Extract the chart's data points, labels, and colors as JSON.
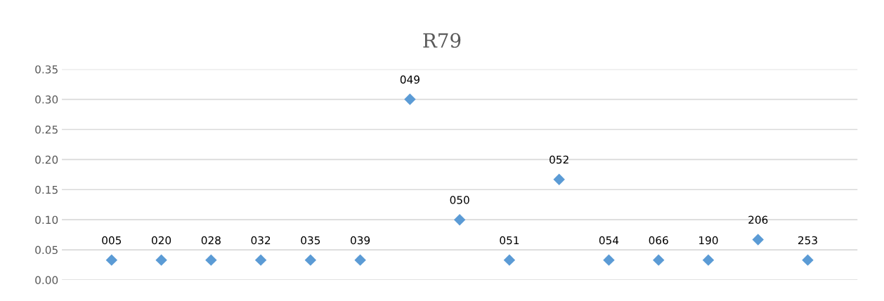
{
  "chart_data": {
    "type": "scatter",
    "title": "R79",
    "categories": [
      "005",
      "020",
      "028",
      "032",
      "035",
      "039",
      "049",
      "050",
      "051",
      "052",
      "054",
      "066",
      "190",
      "206",
      "253"
    ],
    "series": [
      {
        "color": "#5b9bd5",
        "values": [
          0.033,
          0.033,
          0.033,
          0.033,
          0.033,
          0.033,
          0.3,
          0.1,
          0.033,
          0.167,
          0.033,
          0.033,
          0.033,
          0.067,
          0.033
        ]
      }
    ],
    "ylim": [
      0,
      0.35
    ],
    "yticks": [
      {
        "value": 0,
        "label": "0.00"
      },
      {
        "value": 0.05,
        "label": "0.05"
      },
      {
        "value": 0.1,
        "label": "0.10"
      },
      {
        "value": 0.15,
        "label": "0.15"
      },
      {
        "value": 0.2,
        "label": "0.20"
      },
      {
        "value": 0.25,
        "label": "0.25"
      },
      {
        "value": 0.3,
        "label": "0.30"
      },
      {
        "value": 0.35,
        "label": "0.35"
      }
    ],
    "grid": "y",
    "marker": "diamond",
    "tick_labels": "y",
    "legend": false
  }
}
